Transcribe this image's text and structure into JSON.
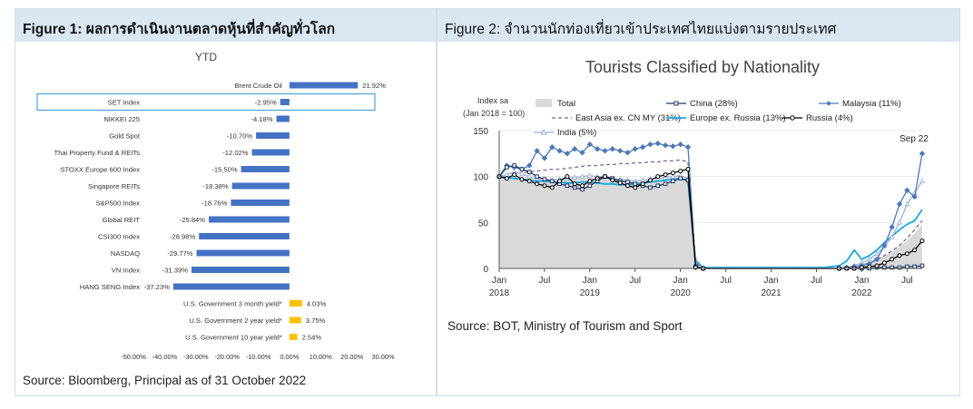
{
  "figure1": {
    "header": "Figure 1: ผลการดำเนินงานตลาดหุ้นที่สำคัญทั่วโลก",
    "source": "Source: Bloomberg, Principal as of 31 October 2022",
    "colors": {
      "blue": "#4472c4",
      "yellow": "#ffc000",
      "highlight": "#4aa3d8"
    }
  },
  "figure2": {
    "header": "Figure 2: จำนวนนักท่องเที่ยวเข้าประเทศไทยแบ่งตามรายประเทศ",
    "source": "Source: BOT, Ministry of Tourism and Sport",
    "annotation": "Sep 22",
    "colors": {
      "total": "#d9d9d9",
      "china": "#1f3864",
      "malaysia": "#4e79b9",
      "east_asia": "#8064a2",
      "europe": "#17a9e0",
      "russia": "#000000",
      "india": "#9db3d6"
    }
  },
  "chart_data": [
    {
      "type": "bar",
      "orientation": "horizontal",
      "title": "YTD",
      "categories": [
        "Brent Crude Oil",
        "SET Index",
        "NIKKEI 225",
        "Gold Spot",
        "Thai Property Fund & REITs",
        "STOXX Europe 600 Index",
        "Singapore REITs",
        "S&P500 Index",
        "Global REIT",
        "CSI300 Index",
        "NASDAQ",
        "VN Index",
        "HANG SENG Index",
        "U.S. Government 3 month yield*",
        "U.S. Government 2 year yield*",
        "U.S. Government 10 year yield*"
      ],
      "values": [
        21.92,
        -2.95,
        -4.18,
        -10.7,
        -12.02,
        -15.5,
        -18.38,
        -18.76,
        -25.84,
        -28.98,
        -29.77,
        -31.39,
        -37.23,
        4.03,
        3.75,
        2.54
      ],
      "value_labels": [
        "21.92%",
        "-2.95%",
        "-4.18%",
        "-10.70%",
        "-12.02%",
        "-15.50%",
        "-18.38%",
        "-18.76%",
        "-25.84%",
        "-28.98%",
        "-29.77%",
        "-31.39%",
        "-37.23%",
        "4.03%",
        "3.75%",
        "2.54%"
      ],
      "highlighted_category": "SET Index",
      "bar_colors": [
        "blue",
        "blue",
        "blue",
        "blue",
        "blue",
        "blue",
        "blue",
        "blue",
        "blue",
        "blue",
        "blue",
        "blue",
        "blue",
        "yellow",
        "yellow",
        "yellow"
      ],
      "xlim": [
        -50,
        30
      ],
      "xticks": [
        "-50.00%",
        "-40.00%",
        "-30.00%",
        "-20.00%",
        "-10.00%",
        "0.00%",
        "10.00%",
        "20.00%",
        "30.00%"
      ],
      "grid": false
    },
    {
      "type": "line",
      "title": "Tourists Classified by Nationality",
      "ylabel_line1": "Index sa",
      "ylabel_line2": "(Jan 2018 = 100)",
      "ylim": [
        0,
        150
      ],
      "yticks": [
        0,
        50,
        100,
        150
      ],
      "x_range": [
        "2018-01",
        "2022-09"
      ],
      "xticks_months": [
        "Jan",
        "Jul",
        "Jan",
        "Jul",
        "Jan",
        "Jul",
        "Jan",
        "Jul",
        "Jan",
        "Jul"
      ],
      "xticks_years": [
        "2018",
        "2019",
        "2020",
        "2021",
        "2022"
      ],
      "legend_placement": "top",
      "legend": [
        "Total",
        "China (28%)",
        "Malaysia (11%)",
        "East Asia ex. CN MY (31%)",
        "Europe ex. Russia (13%)",
        "Russia (4%)",
        "India (5%)"
      ],
      "series": [
        {
          "name": "Total",
          "style": "area",
          "values": [
            100,
            101,
            100,
            99,
            98,
            97,
            96,
            95,
            96,
            97,
            98,
            99,
            99,
            98,
            97,
            96,
            95,
            95,
            94,
            94,
            95,
            96,
            96,
            97,
            97,
            96,
            14,
            1,
            1,
            1,
            1,
            1,
            1,
            1,
            1,
            1,
            1,
            1,
            1,
            1,
            1,
            1,
            1,
            1,
            1,
            1,
            2,
            3,
            5,
            7,
            10,
            14,
            18,
            24,
            30,
            38,
            48
          ]
        },
        {
          "name": "China (28%)",
          "style": "line-open-square",
          "values": [
            100,
            110,
            112,
            108,
            105,
            100,
            97,
            95,
            92,
            90,
            88,
            86,
            90,
            95,
            100,
            98,
            95,
            94,
            92,
            90,
            88,
            90,
            92,
            95,
            98,
            96,
            2,
            0,
            0,
            0,
            0,
            0,
            0,
            0,
            0,
            0,
            0,
            0,
            0,
            0,
            0,
            0,
            0,
            0,
            0,
            0,
            0,
            0,
            0,
            0,
            1,
            1,
            1,
            1,
            2,
            2,
            3
          ]
        },
        {
          "name": "Malaysia (11%)",
          "style": "line-diamond",
          "values": [
            100,
            112,
            110,
            108,
            112,
            128,
            120,
            132,
            128,
            125,
            130,
            126,
            135,
            130,
            128,
            130,
            128,
            126,
            130,
            132,
            135,
            136,
            134,
            133,
            135,
            132,
            2,
            0,
            0,
            0,
            0,
            0,
            0,
            0,
            0,
            0,
            0,
            0,
            0,
            0,
            0,
            0,
            0,
            0,
            0,
            0,
            1,
            2,
            3,
            5,
            10,
            25,
            45,
            70,
            85,
            78,
            125
          ]
        },
        {
          "name": "East Asia ex. CN MY (31%)",
          "style": "dashed",
          "values": [
            100,
            102,
            103,
            104,
            105,
            106,
            107,
            108,
            108,
            109,
            110,
            111,
            112,
            112,
            113,
            113,
            114,
            114,
            115,
            115,
            116,
            116,
            117,
            117,
            118,
            116,
            6,
            0,
            0,
            0,
            0,
            0,
            0,
            0,
            0,
            0,
            0,
            0,
            0,
            0,
            0,
            0,
            0,
            0,
            0,
            0,
            1,
            2,
            4,
            6,
            10,
            14,
            19,
            25,
            33,
            42,
            52
          ]
        },
        {
          "name": "Europe ex. Russia (13%)",
          "style": "line",
          "values": [
            100,
            99,
            98,
            97,
            96,
            95,
            95,
            94,
            94,
            93,
            93,
            94,
            94,
            93,
            92,
            92,
            91,
            91,
            92,
            93,
            94,
            95,
            96,
            97,
            98,
            95,
            8,
            1,
            1,
            1,
            1,
            1,
            1,
            1,
            1,
            1,
            1,
            1,
            1,
            1,
            1,
            1,
            1,
            1,
            2,
            3,
            8,
            20,
            10,
            14,
            20,
            28,
            35,
            42,
            48,
            52,
            64
          ]
        },
        {
          "name": "Russia (4%)",
          "style": "line-open-circle",
          "values": [
            100,
            98,
            102,
            97,
            95,
            92,
            90,
            88,
            95,
            100,
            92,
            90,
            95,
            98,
            100,
            96,
            93,
            90,
            88,
            92,
            96,
            100,
            102,
            104,
            106,
            108,
            1,
            0,
            0,
            0,
            0,
            0,
            0,
            0,
            0,
            0,
            0,
            0,
            0,
            0,
            0,
            0,
            0,
            0,
            0,
            0,
            0,
            0,
            1,
            2,
            3,
            6,
            10,
            14,
            16,
            20,
            30
          ]
        },
        {
          "name": "India (5%)",
          "style": "line-triangle",
          "values": [
            100,
            102,
            105,
            103,
            100,
            98,
            97,
            96,
            97,
            98,
            99,
            100,
            101,
            100,
            99,
            98,
            97,
            96,
            95,
            96,
            97,
            98,
            99,
            100,
            101,
            98,
            4,
            0,
            0,
            0,
            0,
            0,
            0,
            0,
            0,
            0,
            0,
            0,
            0,
            0,
            0,
            0,
            0,
            0,
            0,
            0,
            1,
            3,
            6,
            10,
            16,
            24,
            34,
            50,
            70,
            82,
            95
          ]
        }
      ]
    }
  ]
}
